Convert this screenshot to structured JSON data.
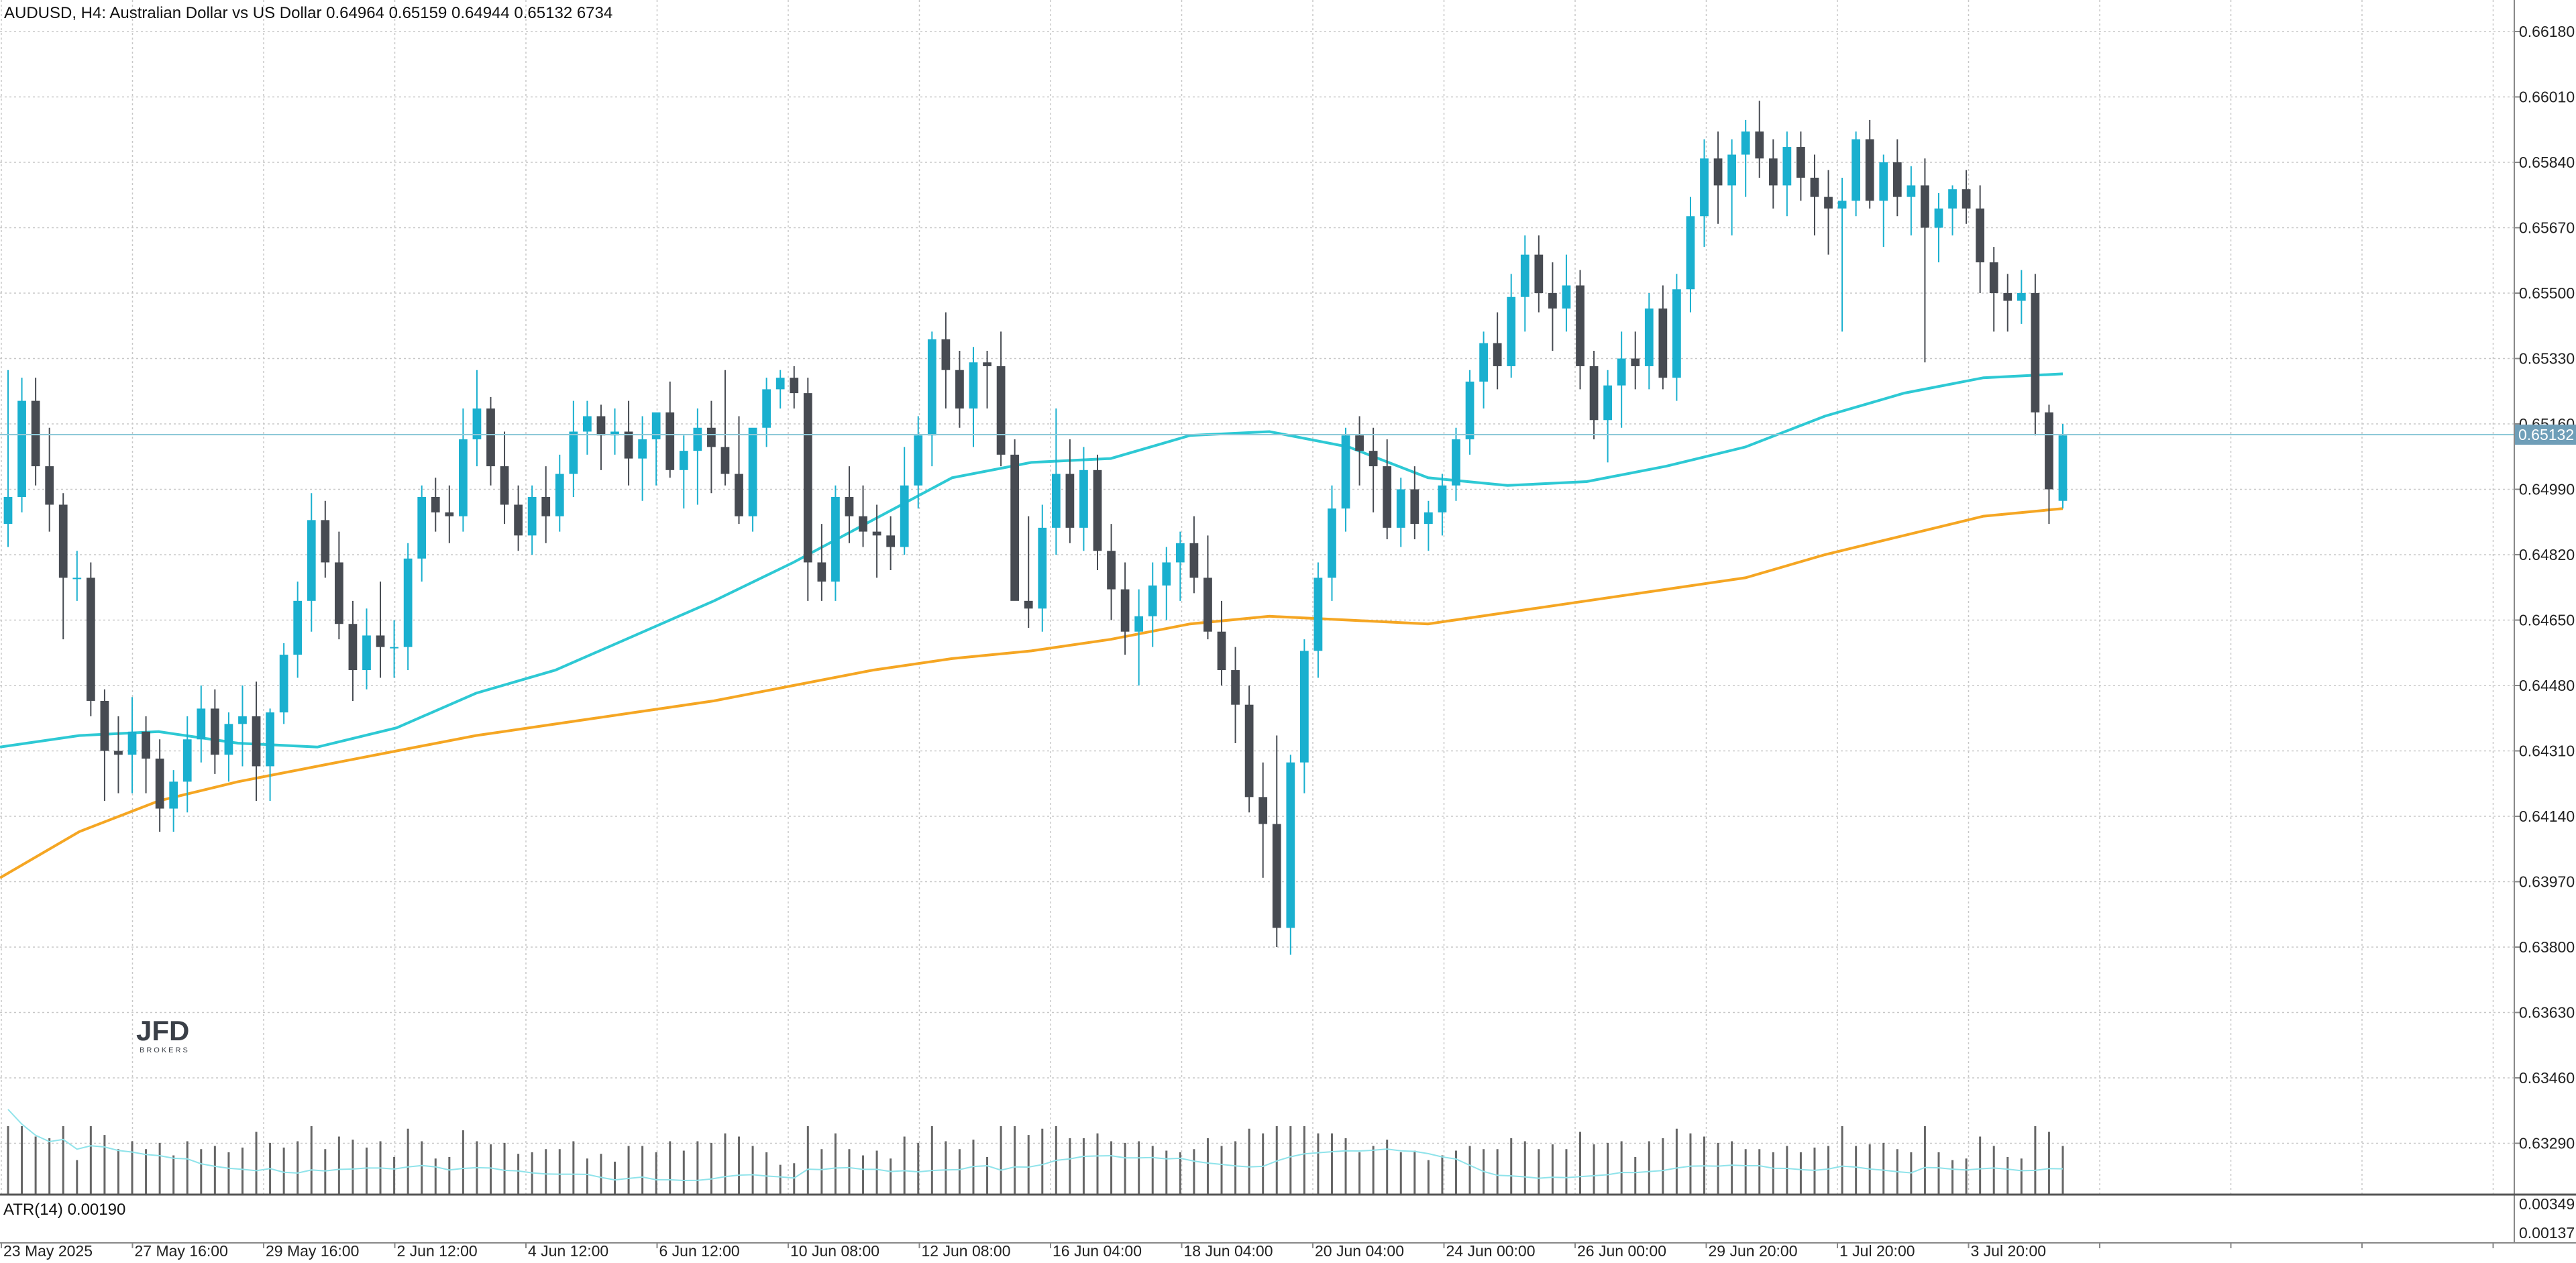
{
  "header": {
    "symbol": "AUDUSD",
    "timeframe": "H4",
    "description": "Australian Dollar vs US Dollar",
    "open": "0.64964",
    "high": "0.65159",
    "low": "0.64944",
    "close": "0.65132",
    "volume": "6734",
    "text": "AUDUSD, H4:  Australian Dollar vs US Dollar  0.64964 0.65159 0.64944 0.65132  6734"
  },
  "price_axis": {
    "labels": [
      "0.66180",
      "0.66010",
      "0.65840",
      "0.65670",
      "0.65500",
      "0.65330",
      "0.65160",
      "0.64990",
      "0.64820",
      "0.64650",
      "0.64480",
      "0.64310",
      "0.64140",
      "0.63970",
      "0.63800",
      "0.63630",
      "0.63460",
      "0.63290"
    ],
    "current_price_label": "0.65132",
    "hidden_behind_label": "0.65160"
  },
  "time_axis": {
    "labels": [
      "23 May 2025",
      "27 May 16:00",
      "29 May 16:00",
      "2 Jun 12:00",
      "4 Jun 12:00",
      "6 Jun 12:00",
      "10 Jun 08:00",
      "12 Jun 08:00",
      "16 Jun 04:00",
      "18 Jun 04:00",
      "20 Jun 04:00",
      "24 Jun 00:00",
      "26 Jun 00:00",
      "29 Jun 20:00",
      "1 Jul 20:00",
      "3 Jul 20:00"
    ]
  },
  "indicator": {
    "name": "ATR(14) 0.00190",
    "axis_labels": [
      "0.00349",
      "0.00137"
    ]
  },
  "logo": {
    "text": "JFD",
    "subtext": "BROKERS"
  },
  "colors": {
    "bull": "#1ab0cf",
    "bear": "#474b52",
    "ma_fast": "#2ec9d4",
    "ma_slow": "#f5a623",
    "grid": "#c8c8c8",
    "price_tag": "#6f9eb8"
  },
  "chart_data": {
    "type": "candlestick",
    "symbol": "AUDUSD",
    "timeframe": "H4",
    "ylim": [
      0.6329,
      0.6626
    ],
    "current_price": 0.65132,
    "candles_ohlc": [
      [
        0.649,
        0.653,
        0.6484,
        0.6497
      ],
      [
        0.6497,
        0.6528,
        0.6493,
        0.6522
      ],
      [
        0.6522,
        0.6528,
        0.65,
        0.6505
      ],
      [
        0.6505,
        0.6515,
        0.6488,
        0.6495
      ],
      [
        0.6495,
        0.6498,
        0.646,
        0.6476
      ],
      [
        0.6476,
        0.6483,
        0.647,
        0.6476
      ],
      [
        0.6476,
        0.648,
        0.644,
        0.6444
      ],
      [
        0.6444,
        0.6447,
        0.6418,
        0.6431
      ],
      [
        0.6431,
        0.644,
        0.642,
        0.643
      ],
      [
        0.643,
        0.6445,
        0.642,
        0.6436
      ],
      [
        0.6436,
        0.644,
        0.642,
        0.6429
      ],
      [
        0.6429,
        0.6434,
        0.641,
        0.6416
      ],
      [
        0.6416,
        0.6426,
        0.641,
        0.6423
      ],
      [
        0.6423,
        0.644,
        0.6415,
        0.6434
      ],
      [
        0.6434,
        0.6448,
        0.6428,
        0.6442
      ],
      [
        0.6442,
        0.6447,
        0.6425,
        0.643
      ],
      [
        0.643,
        0.6441,
        0.6423,
        0.6438
      ],
      [
        0.6438,
        0.6448,
        0.6427,
        0.644
      ],
      [
        0.644,
        0.6449,
        0.6418,
        0.6427
      ],
      [
        0.6427,
        0.6442,
        0.6418,
        0.6441
      ],
      [
        0.6441,
        0.6459,
        0.6438,
        0.6456
      ],
      [
        0.6456,
        0.6475,
        0.645,
        0.647
      ],
      [
        0.647,
        0.6498,
        0.6462,
        0.6491
      ],
      [
        0.6491,
        0.6496,
        0.6476,
        0.648
      ],
      [
        0.648,
        0.6488,
        0.646,
        0.6464
      ],
      [
        0.6464,
        0.647,
        0.6444,
        0.6452
      ],
      [
        0.6452,
        0.6468,
        0.6447,
        0.6461
      ],
      [
        0.6461,
        0.6475,
        0.645,
        0.6458
      ],
      [
        0.6458,
        0.6465,
        0.645,
        0.6458
      ],
      [
        0.6458,
        0.6485,
        0.6452,
        0.6481
      ],
      [
        0.6481,
        0.65,
        0.6475,
        0.6497
      ],
      [
        0.6497,
        0.6502,
        0.6488,
        0.6493
      ],
      [
        0.6493,
        0.65,
        0.6485,
        0.6492
      ],
      [
        0.6492,
        0.652,
        0.6488,
        0.6512
      ],
      [
        0.6512,
        0.653,
        0.6505,
        0.652
      ],
      [
        0.652,
        0.6523,
        0.65,
        0.6505
      ],
      [
        0.6505,
        0.6514,
        0.649,
        0.6495
      ],
      [
        0.6495,
        0.65,
        0.6483,
        0.6487
      ],
      [
        0.6487,
        0.65,
        0.6482,
        0.6497
      ],
      [
        0.6497,
        0.6505,
        0.6485,
        0.6492
      ],
      [
        0.6492,
        0.6508,
        0.6488,
        0.6503
      ],
      [
        0.6503,
        0.6522,
        0.6497,
        0.6514
      ],
      [
        0.6514,
        0.6522,
        0.6508,
        0.6518
      ],
      [
        0.6518,
        0.6521,
        0.6504,
        0.6513
      ],
      [
        0.6513,
        0.652,
        0.6508,
        0.6514
      ],
      [
        0.6514,
        0.6522,
        0.65,
        0.6507
      ],
      [
        0.6507,
        0.6518,
        0.6496,
        0.6512
      ],
      [
        0.6512,
        0.6518,
        0.65,
        0.6519
      ],
      [
        0.6519,
        0.6527,
        0.6502,
        0.6504
      ],
      [
        0.6504,
        0.6513,
        0.6494,
        0.6509
      ],
      [
        0.6509,
        0.652,
        0.6495,
        0.6515
      ],
      [
        0.6515,
        0.6522,
        0.6498,
        0.651
      ],
      [
        0.651,
        0.653,
        0.65,
        0.6503
      ],
      [
        0.6503,
        0.6518,
        0.649,
        0.6492
      ],
      [
        0.6492,
        0.651,
        0.6488,
        0.6515
      ],
      [
        0.6515,
        0.6528,
        0.651,
        0.6525
      ],
      [
        0.6525,
        0.653,
        0.652,
        0.6528
      ],
      [
        0.6528,
        0.6531,
        0.652,
        0.6524
      ],
      [
        0.6524,
        0.6528,
        0.647,
        0.648
      ],
      [
        0.648,
        0.649,
        0.647,
        0.6475
      ],
      [
        0.6475,
        0.65,
        0.647,
        0.6497
      ],
      [
        0.6497,
        0.6505,
        0.6485,
        0.6492
      ],
      [
        0.6492,
        0.65,
        0.6484,
        0.6488
      ],
      [
        0.6488,
        0.6495,
        0.6476,
        0.6487
      ],
      [
        0.6487,
        0.6492,
        0.6478,
        0.6484
      ],
      [
        0.6484,
        0.651,
        0.6482,
        0.65
      ],
      [
        0.65,
        0.6518,
        0.6494,
        0.6513
      ],
      [
        0.6513,
        0.654,
        0.6505,
        0.6538
      ],
      [
        0.6538,
        0.6545,
        0.652,
        0.653
      ],
      [
        0.653,
        0.6535,
        0.6515,
        0.652
      ],
      [
        0.652,
        0.6536,
        0.651,
        0.6532
      ],
      [
        0.6532,
        0.6535,
        0.652,
        0.6531
      ],
      [
        0.6531,
        0.654,
        0.6505,
        0.6508
      ],
      [
        0.6508,
        0.6512,
        0.6475,
        0.647
      ],
      [
        0.647,
        0.6492,
        0.6463,
        0.6468
      ],
      [
        0.6468,
        0.6495,
        0.6462,
        0.6489
      ],
      [
        0.6489,
        0.652,
        0.6482,
        0.6503
      ],
      [
        0.6503,
        0.6512,
        0.6485,
        0.6489
      ],
      [
        0.6489,
        0.651,
        0.6483,
        0.6504
      ],
      [
        0.6504,
        0.6508,
        0.6478,
        0.6483
      ],
      [
        0.6483,
        0.649,
        0.6465,
        0.6473
      ],
      [
        0.6473,
        0.648,
        0.6456,
        0.6462
      ],
      [
        0.6462,
        0.6473,
        0.6448,
        0.6466
      ],
      [
        0.6466,
        0.648,
        0.6458,
        0.6474
      ],
      [
        0.6474,
        0.6484,
        0.6465,
        0.648
      ],
      [
        0.648,
        0.6488,
        0.647,
        0.6485
      ],
      [
        0.6485,
        0.6492,
        0.6472,
        0.6476
      ],
      [
        0.6476,
        0.6487,
        0.646,
        0.6462
      ],
      [
        0.6462,
        0.647,
        0.6448,
        0.6452
      ],
      [
        0.6452,
        0.6458,
        0.6433,
        0.6443
      ],
      [
        0.6443,
        0.6448,
        0.6415,
        0.6419
      ],
      [
        0.6419,
        0.6428,
        0.6398,
        0.6412
      ],
      [
        0.6412,
        0.6435,
        0.638,
        0.6385
      ],
      [
        0.6385,
        0.643,
        0.6378,
        0.6428
      ],
      [
        0.6428,
        0.646,
        0.642,
        0.6457
      ],
      [
        0.6457,
        0.648,
        0.645,
        0.6476
      ],
      [
        0.6476,
        0.65,
        0.647,
        0.6494
      ],
      [
        0.6494,
        0.6515,
        0.6488,
        0.6513
      ],
      [
        0.6513,
        0.6518,
        0.65,
        0.6509
      ],
      [
        0.6509,
        0.6515,
        0.6493,
        0.6505
      ],
      [
        0.6505,
        0.6512,
        0.6486,
        0.6489
      ],
      [
        0.6489,
        0.6502,
        0.6484,
        0.6499
      ],
      [
        0.6499,
        0.6505,
        0.6486,
        0.649
      ],
      [
        0.649,
        0.6496,
        0.6483,
        0.6493
      ],
      [
        0.6493,
        0.6503,
        0.6487,
        0.65
      ],
      [
        0.65,
        0.6515,
        0.6496,
        0.6512
      ],
      [
        0.6512,
        0.653,
        0.6508,
        0.6527
      ],
      [
        0.6527,
        0.654,
        0.652,
        0.6537
      ],
      [
        0.6537,
        0.6545,
        0.6525,
        0.6531
      ],
      [
        0.6531,
        0.6555,
        0.6528,
        0.6549
      ],
      [
        0.6549,
        0.6565,
        0.654,
        0.656
      ],
      [
        0.656,
        0.6565,
        0.6545,
        0.655
      ],
      [
        0.655,
        0.6558,
        0.6535,
        0.6546
      ],
      [
        0.6546,
        0.656,
        0.654,
        0.6552
      ],
      [
        0.6552,
        0.6556,
        0.6525,
        0.6531
      ],
      [
        0.6531,
        0.6535,
        0.6512,
        0.6517
      ],
      [
        0.6517,
        0.653,
        0.6506,
        0.6526
      ],
      [
        0.6526,
        0.654,
        0.6515,
        0.6533
      ],
      [
        0.6533,
        0.654,
        0.6525,
        0.6531
      ],
      [
        0.6531,
        0.655,
        0.6525,
        0.6546
      ],
      [
        0.6546,
        0.6552,
        0.6525,
        0.6528
      ],
      [
        0.6528,
        0.6555,
        0.6522,
        0.6551
      ],
      [
        0.6551,
        0.6575,
        0.6545,
        0.657
      ],
      [
        0.657,
        0.659,
        0.6562,
        0.6585
      ],
      [
        0.6585,
        0.6592,
        0.6568,
        0.6578
      ],
      [
        0.6578,
        0.659,
        0.6565,
        0.6586
      ],
      [
        0.6586,
        0.6595,
        0.6575,
        0.6592
      ],
      [
        0.6592,
        0.66,
        0.658,
        0.6585
      ],
      [
        0.6585,
        0.659,
        0.6572,
        0.6578
      ],
      [
        0.6578,
        0.6592,
        0.657,
        0.6588
      ],
      [
        0.6588,
        0.6592,
        0.6574,
        0.658
      ],
      [
        0.658,
        0.6586,
        0.6565,
        0.6575
      ],
      [
        0.6575,
        0.6582,
        0.656,
        0.6572
      ],
      [
        0.6572,
        0.658,
        0.654,
        0.6574
      ],
      [
        0.6574,
        0.6592,
        0.657,
        0.659
      ],
      [
        0.659,
        0.6595,
        0.6572,
        0.6574
      ],
      [
        0.6574,
        0.6586,
        0.6562,
        0.6584
      ],
      [
        0.6584,
        0.659,
        0.657,
        0.6575
      ],
      [
        0.6575,
        0.6583,
        0.6565,
        0.6578
      ],
      [
        0.6578,
        0.6585,
        0.6532,
        0.6567
      ],
      [
        0.6567,
        0.6576,
        0.6558,
        0.6572
      ],
      [
        0.6572,
        0.6578,
        0.6565,
        0.6577
      ],
      [
        0.6577,
        0.6582,
        0.6568,
        0.6572
      ],
      [
        0.6572,
        0.6578,
        0.655,
        0.6558
      ],
      [
        0.6558,
        0.6562,
        0.654,
        0.655
      ],
      [
        0.655,
        0.6555,
        0.654,
        0.6548
      ],
      [
        0.6548,
        0.6556,
        0.6542,
        0.655
      ],
      [
        0.655,
        0.6555,
        0.6513,
        0.6519
      ],
      [
        0.6519,
        0.6521,
        0.649,
        0.6499
      ],
      [
        0.6496,
        0.6516,
        0.6494,
        0.6513
      ]
    ],
    "ma_fast_values": [
      0.6432,
      0.6435,
      0.6436,
      0.6433,
      0.6432,
      0.6437,
      0.6446,
      0.6452,
      0.6461,
      0.647,
      0.648,
      0.6491,
      0.6502,
      0.6506,
      0.6507,
      0.6513,
      0.6514,
      0.651,
      0.6502,
      0.65,
      0.6501,
      0.6505,
      0.651,
      0.6518,
      0.6524,
      0.6528,
      0.6529
    ],
    "ma_slow_values": [
      0.6398,
      0.641,
      0.6418,
      0.6423,
      0.6427,
      0.6431,
      0.6435,
      0.6438,
      0.6441,
      0.6444,
      0.6448,
      0.6452,
      0.6455,
      0.6457,
      0.646,
      0.6464,
      0.6466,
      0.6465,
      0.6464,
      0.6467,
      0.647,
      0.6473,
      0.6476,
      0.6482,
      0.6487,
      0.6492,
      0.6494
    ]
  }
}
